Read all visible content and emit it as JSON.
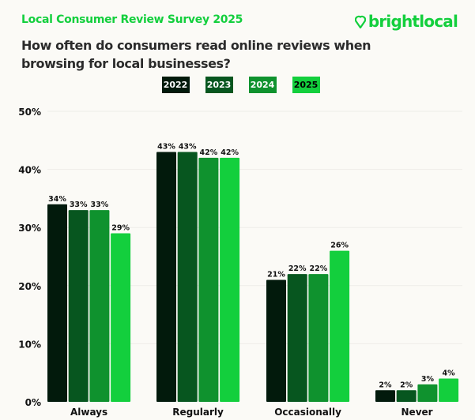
{
  "header": {
    "survey_title": "Local Consumer Review Survey 2025",
    "logo_text": "brightlocal",
    "question": "How often do consumers read online reviews when browsing for local businesses?"
  },
  "chart_data": {
    "type": "bar",
    "title": "How often do consumers read online reviews when browsing for local businesses?",
    "categories": [
      "Always",
      "Regularly",
      "Occasionally",
      "Never"
    ],
    "series": [
      {
        "name": "2022",
        "color": "#021a0c",
        "values": [
          34,
          43,
          21,
          2
        ]
      },
      {
        "name": "2023",
        "color": "#07561f",
        "values": [
          33,
          43,
          22,
          2
        ]
      },
      {
        "name": "2024",
        "color": "#0f922e",
        "values": [
          33,
          42,
          22,
          3
        ]
      },
      {
        "name": "2025",
        "color": "#13cf3d",
        "values": [
          29,
          42,
          26,
          4
        ]
      }
    ],
    "yticks": [
      "0%",
      "10%",
      "20%",
      "30%",
      "40%",
      "50%"
    ],
    "ylim": [
      0,
      50
    ],
    "legend": "top-center",
    "grid": true
  }
}
